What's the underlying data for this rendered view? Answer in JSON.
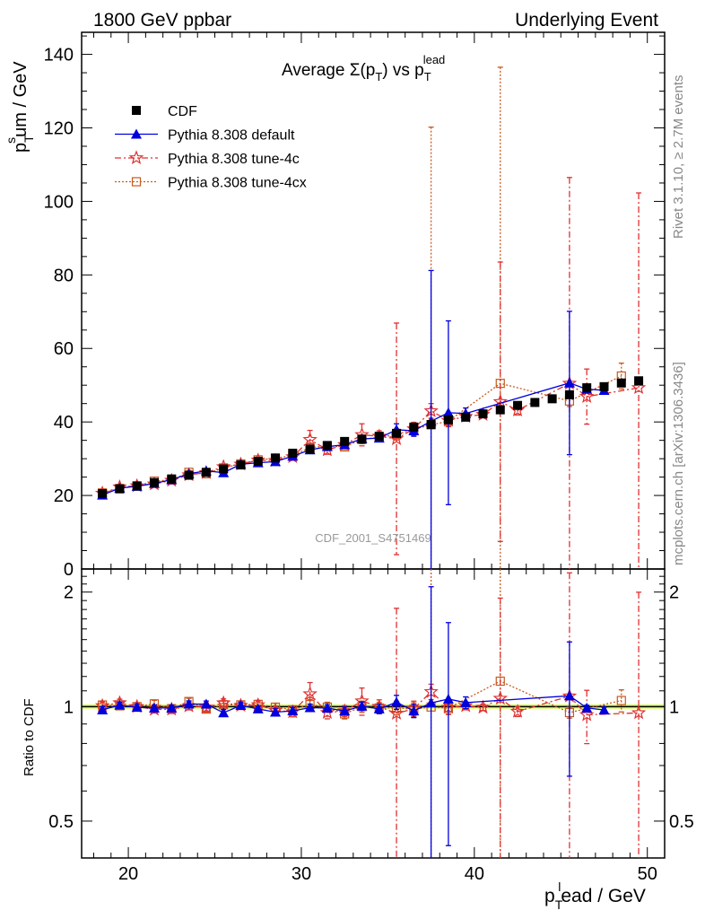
{
  "header": {
    "left": "1800 GeV ppbar",
    "right": "Underlying Event"
  },
  "side_labels": {
    "rivet": "Rivet 3.1.10, ≥ 2.7M events",
    "mcplots": "mcplots.cern.ch [arXiv:1306.3436]"
  },
  "watermark": "CDF_2001_S4751469",
  "chart_data": [
    {
      "type": "scatter",
      "title": "Average Σ(pT) vs pT^lead",
      "title_parts": {
        "main": "Average Σ(p",
        "sub1": "T",
        "mid": ") vs p",
        "sub2": "T",
        "sup2": "lead"
      },
      "ylabel": "p_T^s um / GeV",
      "ylabel_parts": {
        "p": "p",
        "sub": "T",
        "sup": "s",
        "rest": "um / GeV"
      },
      "xlim": [
        17.3,
        51
      ],
      "ylim": [
        0,
        146
      ],
      "yticks": [
        0,
        20,
        40,
        60,
        80,
        100,
        120,
        140
      ],
      "legend_position": "top-left",
      "series": [
        {
          "name": "CDF",
          "color": "#000000",
          "x": [
            18.5,
            19.5,
            20.5,
            21.5,
            22.5,
            23.5,
            24.5,
            25.5,
            26.5,
            27.5,
            28.5,
            29.5,
            30.5,
            31.5,
            32.5,
            33.5,
            34.5,
            35.5,
            36.5,
            37.5,
            38.5,
            39.5,
            40.5,
            41.5,
            42.5,
            43.5,
            44.5,
            45.5,
            46.5,
            47.5,
            48.5,
            49.5
          ],
          "y": [
            20.5,
            21.8,
            22.6,
            23.5,
            24.5,
            25.5,
            26.3,
            27.2,
            28.3,
            29.3,
            30.2,
            31.5,
            32.6,
            33.6,
            34.7,
            35.3,
            36.1,
            36.9,
            38.6,
            39.3,
            40.6,
            41.3,
            42.2,
            43.3,
            44.5,
            45.3,
            46.3,
            47.4,
            49.3,
            49.6,
            50.6,
            51.2
          ]
        },
        {
          "name": "Pythia 8.308 default",
          "color": "#0000dd",
          "x": [
            18.5,
            19.5,
            20.5,
            21.5,
            22.5,
            23.5,
            24.5,
            25.5,
            26.5,
            27.5,
            28.5,
            29.5,
            30.5,
            31.5,
            32.5,
            33.5,
            34.5,
            35.5,
            36.5,
            37.5,
            38.5,
            39.5,
            45.5,
            46.5,
            47.5
          ],
          "y": [
            20.1,
            22.0,
            22.5,
            23.3,
            24.3,
            25.9,
            26.7,
            26.2,
            28.5,
            28.9,
            29.2,
            30.7,
            32.4,
            33.3,
            33.8,
            35.4,
            35.6,
            37.9,
            37.6,
            40.2,
            42.5,
            42.3,
            50.6,
            48.9,
            48.6
          ],
          "yerr": [
            0.4,
            0.4,
            0.4,
            0.4,
            0.4,
            0.5,
            0.5,
            0.5,
            0.5,
            0.5,
            0.6,
            0.6,
            0.7,
            0.7,
            0.8,
            0.9,
            1.0,
            1.6,
            1.5,
            41,
            25,
            1.5,
            19.5,
            0.8,
            0.8
          ]
        },
        {
          "name": "Pythia 8.308 tune-4c",
          "color": "#e03030",
          "x": [
            18.5,
            19.5,
            20.5,
            21.5,
            22.5,
            23.5,
            24.5,
            25.5,
            26.5,
            27.5,
            28.5,
            29.5,
            30.5,
            31.5,
            32.5,
            33.5,
            34.5,
            35.5,
            36.5,
            37.5,
            38.5,
            39.5,
            40.5,
            41.5,
            42.5,
            45.5,
            46.5,
            49.5
          ],
          "y": [
            20.6,
            22.3,
            22.6,
            23.1,
            24.1,
            25.6,
            26.2,
            27.8,
            28.5,
            29.6,
            29.5,
            30.5,
            35.2,
            32.4,
            33.8,
            36.5,
            36.1,
            35.4,
            38.1,
            43.0,
            40.4,
            41.5,
            42.0,
            45.5,
            43.2,
            50.5,
            46.9,
            49.3
          ],
          "yerr": [
            0.5,
            0.5,
            0.5,
            0.5,
            0.6,
            0.6,
            0.7,
            0.7,
            0.7,
            0.8,
            0.8,
            0.9,
            2.5,
            1.2,
            1.1,
            3.0,
            1.5,
            31.5,
            1.8,
            2.0,
            1.6,
            1.0,
            0.8,
            38,
            1.3,
            56,
            7.5,
            53
          ]
        },
        {
          "name": "Pythia 8.308 tune-4cx",
          "color": "#c85a1e",
          "x": [
            18.5,
            19.5,
            20.5,
            21.5,
            22.5,
            23.5,
            24.5,
            25.5,
            26.5,
            27.5,
            28.5,
            29.5,
            30.5,
            31.5,
            32.5,
            33.5,
            34.5,
            35.5,
            36.5,
            37.5,
            38.5,
            41.5,
            45.5,
            48.5
          ],
          "y": [
            20.7,
            21.9,
            22.6,
            23.9,
            24.2,
            26.3,
            25.9,
            27.5,
            28.6,
            29.7,
            30.1,
            30.9,
            33.0,
            33.5,
            33.2,
            35.3,
            35.8,
            36.6,
            38.0,
            39.2,
            40.2,
            50.5,
            45.7,
            52.5
          ],
          "yerr": [
            0.4,
            0.4,
            0.4,
            0.5,
            0.5,
            0.5,
            0.5,
            0.6,
            0.6,
            0.6,
            0.7,
            0.7,
            1.0,
            1.0,
            1.0,
            1.2,
            1.2,
            1.5,
            1.5,
            81,
            1.5,
            86,
            1.5,
            3.5
          ]
        }
      ]
    },
    {
      "type": "scatter",
      "ylabel": "Ratio to CDF",
      "xlabel": "p_T^l ead / GeV",
      "xlabel_parts": {
        "p": "p",
        "sub": "T",
        "sup": "l",
        "rest": "ead / GeV"
      },
      "xlim": [
        17.3,
        51
      ],
      "ylim": [
        0.4,
        2.3
      ],
      "log_y": true,
      "yticks": [
        0.5,
        1,
        2
      ],
      "xticks": [
        20,
        30,
        40,
        50
      ],
      "reference_line": 1,
      "band_color": "#ccff44"
    }
  ]
}
